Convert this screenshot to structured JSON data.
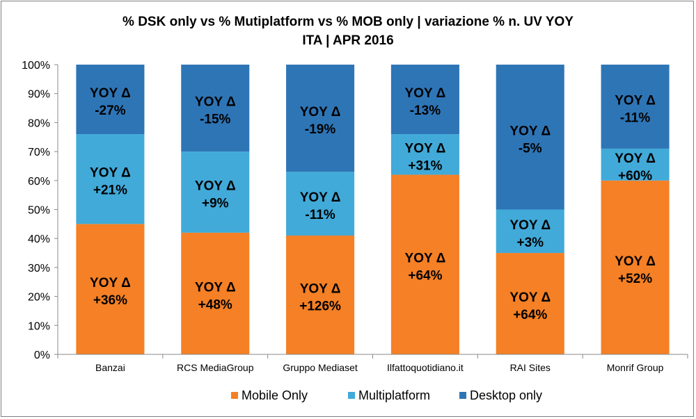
{
  "chart_data": {
    "type": "bar",
    "stacked": true,
    "title": "% DSK only vs % Mutiplatform vs % MOB only | variazione % n. UV YOY",
    "subtitle": "ITA | APR 2016",
    "categories": [
      "Banzai",
      "RCS MediaGroup",
      "Gruppo Mediaset",
      "Ilfattoquotidiano.it",
      "RAI Sites",
      "Monrif Group"
    ],
    "yticks": [
      "0%",
      "10%",
      "20%",
      "30%",
      "40%",
      "50%",
      "60%",
      "70%",
      "80%",
      "90%",
      "100%"
    ],
    "ylim": [
      0,
      100
    ],
    "label_prefix": "YOY Δ",
    "series": [
      {
        "name": "Mobile Only",
        "color": "#F58025",
        "values": [
          45,
          42,
          41,
          62,
          35,
          60
        ],
        "labels": [
          "+36%",
          "+48%",
          "+126%",
          "+64%",
          "+64%",
          "+52%"
        ]
      },
      {
        "name": "Multiplatform",
        "color": "#41AAD9",
        "values": [
          31,
          28,
          22,
          14,
          15,
          11
        ],
        "labels": [
          "+21%",
          "+9%",
          "-11%",
          "+31%",
          "+3%",
          "+60%"
        ]
      },
      {
        "name": "Desktop only",
        "color": "#2E75B6",
        "values": [
          24,
          30,
          37,
          24,
          50,
          29
        ],
        "labels": [
          "-27%",
          "-15%",
          "-19%",
          "-13%",
          "-5%",
          "-11%"
        ]
      }
    ],
    "legend_position": "bottom",
    "grid": false
  }
}
